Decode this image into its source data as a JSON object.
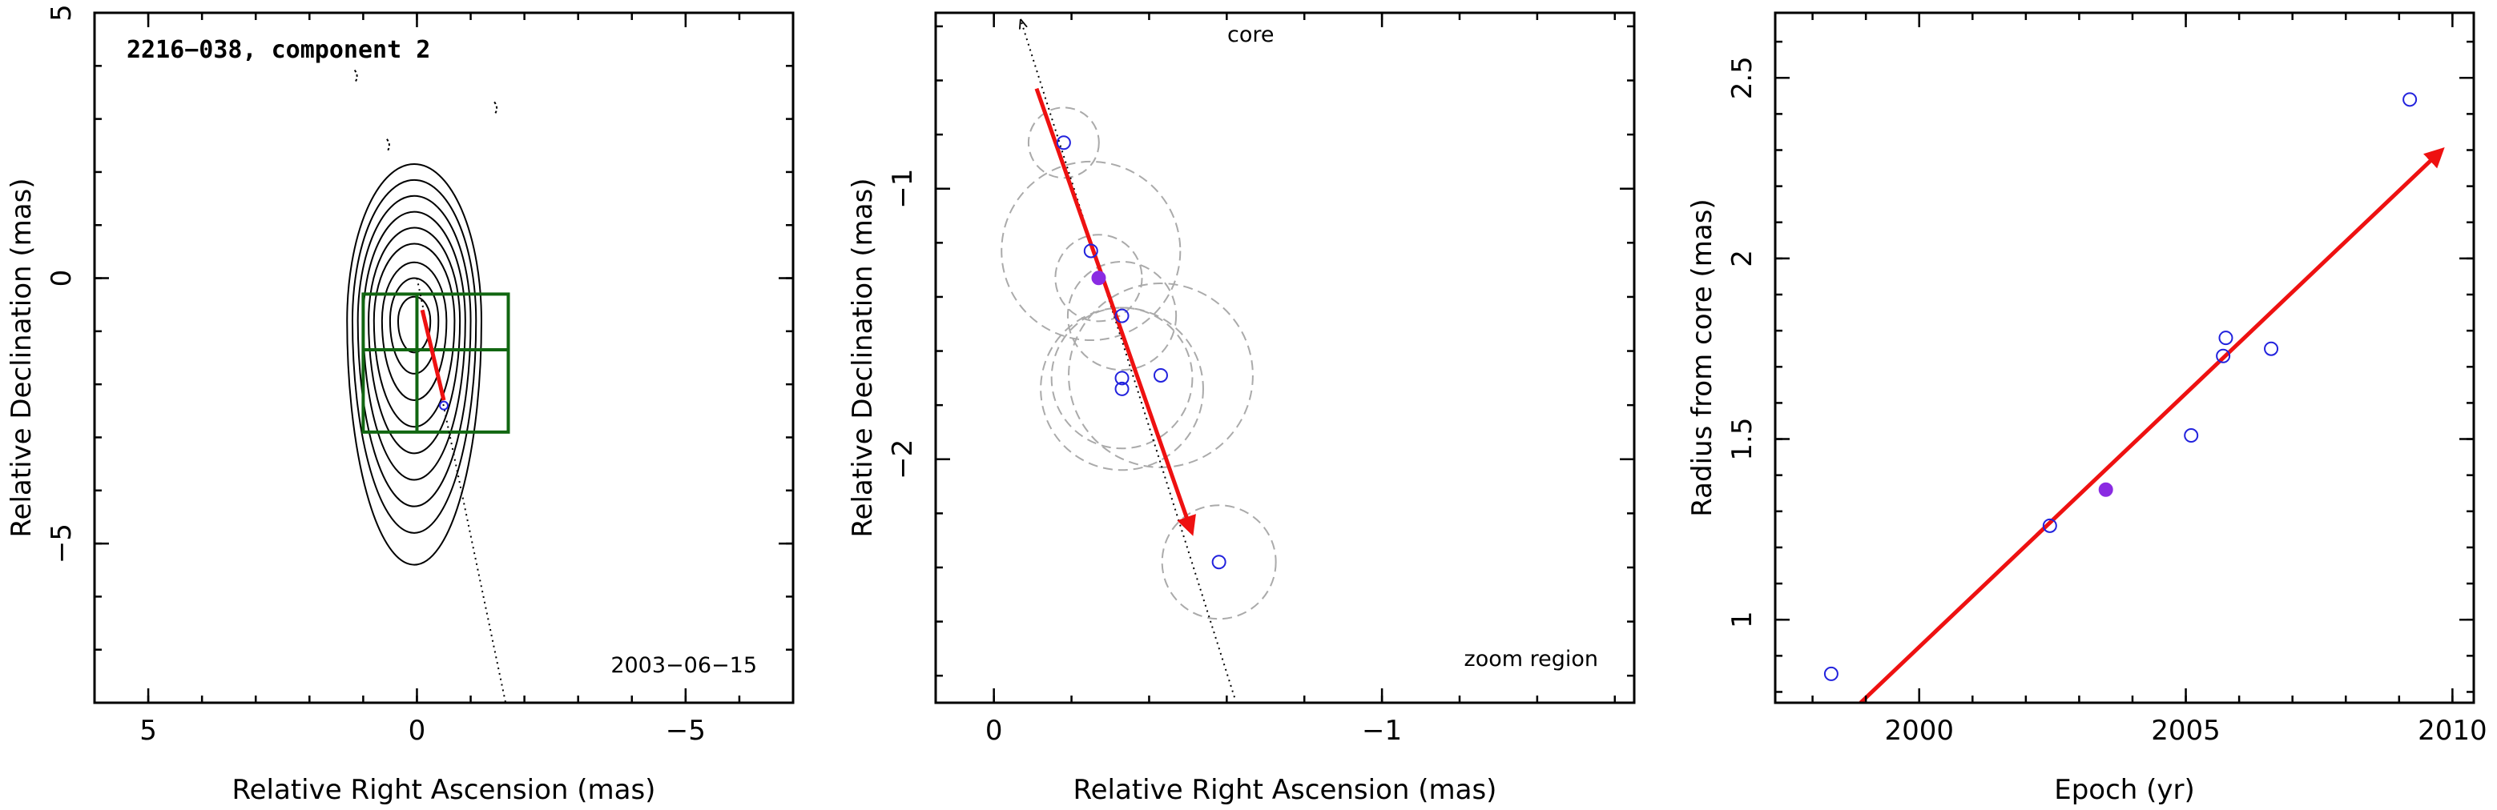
{
  "colors": {
    "axes": "#000000",
    "contour": "#000000",
    "arrow": "#ee1111",
    "hollow_point": "#2222dd",
    "filled_point": "#8a2be2",
    "error_circle": "#aaaaaa",
    "zoom_box": "#116611"
  },
  "chart_data": [
    {
      "type": "contour-map",
      "title": "2216−038, component 2",
      "date_label": "2003−06−15",
      "xlabel": "Relative Right Ascension (mas)",
      "ylabel": "Relative Declination (mas)",
      "xlim": [
        6,
        -7
      ],
      "ylim": [
        -8,
        5
      ],
      "xticks": [
        5,
        0,
        -5
      ],
      "xtick_labels": [
        "5",
        "0",
        "−5"
      ],
      "yticks": [
        5,
        0,
        -5
      ],
      "ytick_labels": [
        "5",
        "0",
        "−5"
      ],
      "contours": {
        "center": [
          0.05,
          -0.8
        ],
        "levels": [
          {
            "rx": 0.3,
            "ry_up": 0.45,
            "ry_down": 0.6
          },
          {
            "rx": 0.45,
            "ry_up": 0.8,
            "ry_down": 1.0
          },
          {
            "rx": 0.6,
            "ry_up": 1.1,
            "ry_down": 1.5
          },
          {
            "rx": 0.75,
            "ry_up": 1.45,
            "ry_down": 2.0
          },
          {
            "rx": 0.85,
            "ry_up": 1.75,
            "ry_down": 2.5
          },
          {
            "rx": 0.95,
            "ry_up": 2.05,
            "ry_down": 3.0
          },
          {
            "rx": 1.05,
            "ry_up": 2.35,
            "ry_down": 3.5
          },
          {
            "rx": 1.15,
            "ry_up": 2.65,
            "ry_down": 4.0
          },
          {
            "rx": 1.25,
            "ry_up": 2.95,
            "ry_down": 4.6
          }
        ],
        "negative_marks": [
          [
            1.1,
            3.8
          ],
          [
            -1.5,
            3.2
          ],
          [
            0.5,
            2.5
          ]
        ]
      },
      "zoom_box": {
        "x": [
          1.0,
          -1.7
        ],
        "y": [
          -0.3,
          -2.9
        ],
        "y_split": -1.35
      },
      "core_line": {
        "from": [
          0.0,
          0.0
        ],
        "to": [
          -1.65,
          -8.0
        ]
      },
      "arrow": {
        "from": [
          -0.1,
          -0.6
        ],
        "to": [
          -0.5,
          -2.3
        ]
      },
      "points": [
        [
          -0.5,
          -2.4
        ]
      ]
    },
    {
      "type": "scatter",
      "xlabel": "Relative Right Ascension (mas)",
      "ylabel": "Relative Declination (mas)",
      "annotations": [
        "core",
        "zoom region"
      ],
      "xlim": [
        0.15,
        -1.65
      ],
      "ylim": [
        -2.9,
        -0.35
      ],
      "xticks": [
        0,
        -1
      ],
      "xtick_labels": [
        "0",
        "−1"
      ],
      "yticks": [
        -1,
        -2
      ],
      "ytick_labels": [
        "−1",
        "−2"
      ],
      "core_line": {
        "from": [
          -0.62,
          -2.88
        ],
        "to": [
          -0.07,
          -0.38
        ]
      },
      "arrow": {
        "from": [
          -0.11,
          -0.63
        ],
        "to": [
          -0.51,
          -2.27
        ]
      },
      "points": [
        {
          "x": -0.18,
          "y": -0.83,
          "r": 0.13,
          "filled": false
        },
        {
          "x": -0.25,
          "y": -1.23,
          "r": 0.33,
          "filled": false
        },
        {
          "x": -0.27,
          "y": -1.33,
          "r": 0.16,
          "filled": true
        },
        {
          "x": -0.33,
          "y": -1.47,
          "r": 0.2,
          "filled": false
        },
        {
          "x": -0.43,
          "y": -1.69,
          "r": 0.34,
          "filled": false
        },
        {
          "x": -0.33,
          "y": -1.7,
          "r": 0.26,
          "filled": false
        },
        {
          "x": -0.33,
          "y": -1.74,
          "r": 0.3,
          "filled": false
        },
        {
          "x": -0.58,
          "y": -2.38,
          "r": 0.21,
          "filled": false
        }
      ]
    },
    {
      "type": "scatter",
      "xlabel": "Epoch (yr)",
      "ylabel": "Radius from core (mas)",
      "xlim": [
        1997.3,
        2010.4
      ],
      "ylim": [
        0.77,
        2.68
      ],
      "xticks": [
        2000,
        2005,
        2010
      ],
      "xtick_labels": [
        "2000",
        "2005",
        "2010"
      ],
      "yticks": [
        1,
        1.5,
        2,
        2.5
      ],
      "ytick_labels": [
        "1",
        "1.5",
        "2",
        "2.5"
      ],
      "arrow": {
        "from": [
          1998.9,
          0.77
        ],
        "to": [
          2009.8,
          2.3
        ]
      },
      "points": [
        {
          "x": 1998.35,
          "y": 0.85,
          "filled": false
        },
        {
          "x": 2002.45,
          "y": 1.26,
          "filled": false
        },
        {
          "x": 2003.5,
          "y": 1.36,
          "filled": true
        },
        {
          "x": 2005.1,
          "y": 1.51,
          "filled": false
        },
        {
          "x": 2005.7,
          "y": 1.73,
          "filled": false
        },
        {
          "x": 2005.75,
          "y": 1.78,
          "filled": false
        },
        {
          "x": 2006.6,
          "y": 1.75,
          "filled": false
        },
        {
          "x": 2009.2,
          "y": 2.44,
          "filled": false
        }
      ]
    }
  ]
}
